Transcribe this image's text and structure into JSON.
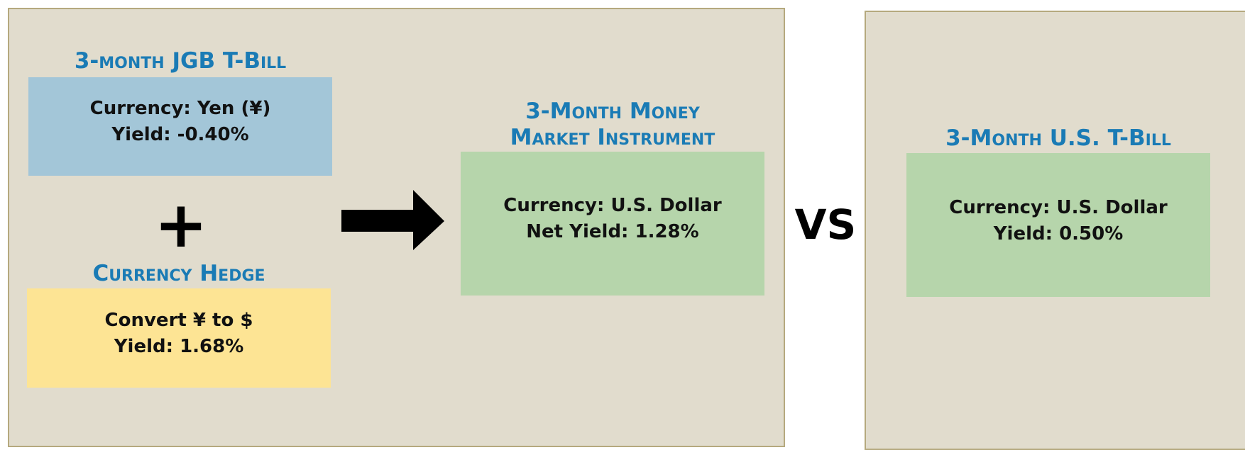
{
  "left_panel": {
    "jgb": {
      "title": "3-month JGB T-Bill",
      "lines": [
        "Currency:  Yen (¥)",
        "Yield:  -0.40%"
      ]
    },
    "operator": "+",
    "hedge": {
      "title": "Currency Hedge",
      "lines": [
        "Convert ¥ to $",
        "Yield:  1.68%"
      ]
    },
    "result": {
      "title": [
        "3-Month Money",
        "Market Instrument"
      ],
      "lines": [
        "Currency:  U.S. Dollar",
        "Net Yield:  1.28%"
      ]
    }
  },
  "versus": "VS",
  "right_panel": {
    "title": "3-Month U.S. T-Bill",
    "lines": [
      "Currency:  U.S. Dollar",
      "Yield:  0.50%"
    ]
  }
}
